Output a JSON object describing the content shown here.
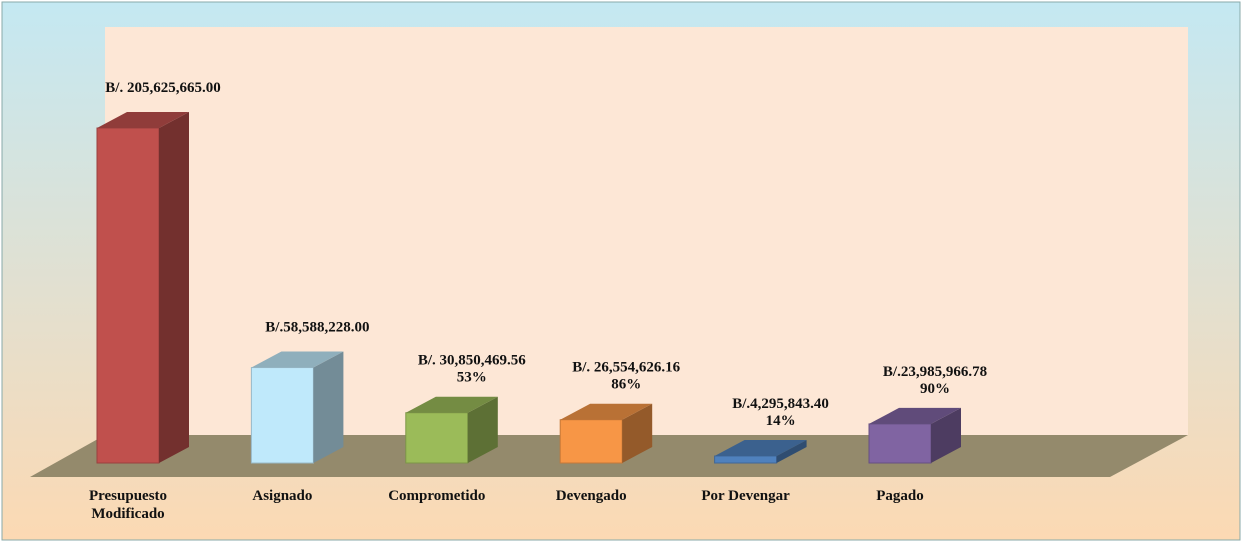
{
  "chart_data": {
    "type": "bar",
    "categories": [
      "Presupuesto Modificado",
      "Asignado",
      "Comprometido",
      "Devengado",
      "Por Devengar",
      "Pagado"
    ],
    "values": [
      205625665.0,
      58588228.0,
      30850469.56,
      26554626.16,
      4295843.4,
      23985966.78
    ],
    "value_labels": [
      "B/. 205,625,665.00",
      "B/.58,588,228.00",
      "B/. 30,850,469.56",
      "B/. 26,554,626.16",
      "B/.4,295,843.40",
      "B/.23,985,966.78"
    ],
    "percentages": [
      null,
      null,
      53,
      86,
      14,
      90
    ],
    "percentage_labels": [
      null,
      null,
      "53%",
      "86%",
      "14%",
      "90%"
    ],
    "colors": [
      "#c0504d",
      "#bfe9fb",
      "#9bbb59",
      "#f79646",
      "#4f81bd",
      "#8064a2"
    ]
  }
}
